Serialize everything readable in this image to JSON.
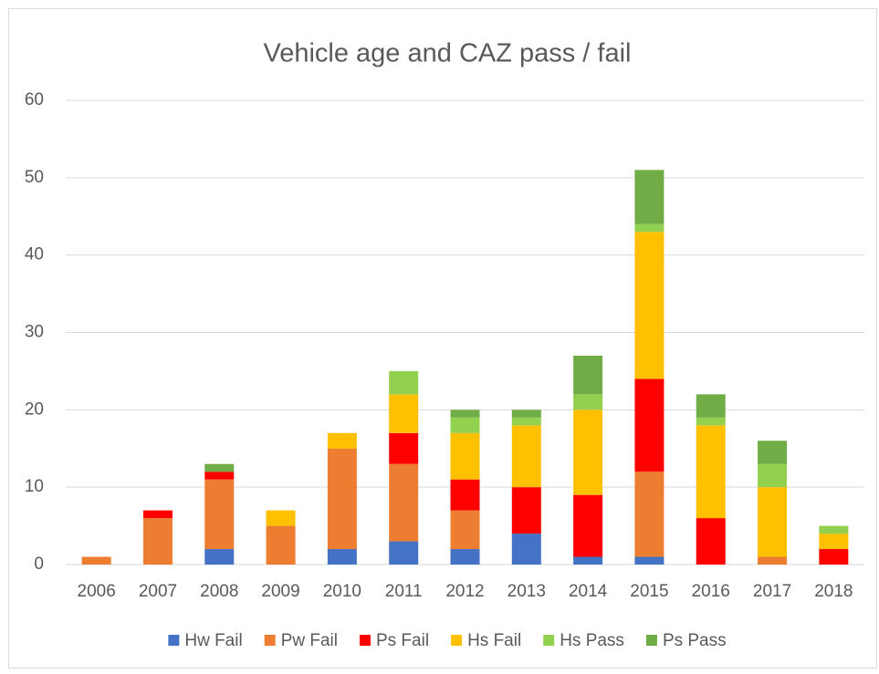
{
  "chart_data": {
    "type": "stacked_bar",
    "title": "Vehicle age and CAZ pass / fail",
    "categories": [
      "2006",
      "2007",
      "2008",
      "2009",
      "2010",
      "2011",
      "2012",
      "2013",
      "2014",
      "2015",
      "2016",
      "2017",
      "2018"
    ],
    "series": [
      {
        "name": "Hw Fail",
        "color": "#4472c4",
        "values": [
          0,
          0,
          2,
          0,
          2,
          3,
          2,
          4,
          1,
          1,
          0,
          0,
          0
        ]
      },
      {
        "name": "Pw Fail",
        "color": "#ed7d31",
        "values": [
          1,
          6,
          9,
          5,
          13,
          10,
          5,
          0,
          0,
          11,
          0,
          1,
          0
        ]
      },
      {
        "name": "Ps Fail",
        "color": "#ff0000",
        "values": [
          0,
          1,
          1,
          0,
          0,
          4,
          4,
          6,
          8,
          12,
          6,
          0,
          2
        ]
      },
      {
        "name": "Hs Fail",
        "color": "#ffc000",
        "values": [
          0,
          0,
          0,
          2,
          2,
          5,
          6,
          8,
          11,
          19,
          12,
          9,
          2
        ]
      },
      {
        "name": "Hs Pass",
        "color": "#92d050",
        "values": [
          0,
          0,
          0,
          0,
          0,
          3,
          2,
          1,
          2,
          1,
          1,
          3,
          1
        ]
      },
      {
        "name": "Ps Pass",
        "color": "#70ad47",
        "values": [
          0,
          0,
          1,
          0,
          0,
          0,
          1,
          1,
          5,
          7,
          3,
          3,
          0
        ]
      }
    ],
    "ylim": [
      0,
      60
    ],
    "yticks": [
      0,
      10,
      20,
      30,
      40,
      50,
      60
    ],
    "grid": true,
    "legend": "bottom"
  }
}
